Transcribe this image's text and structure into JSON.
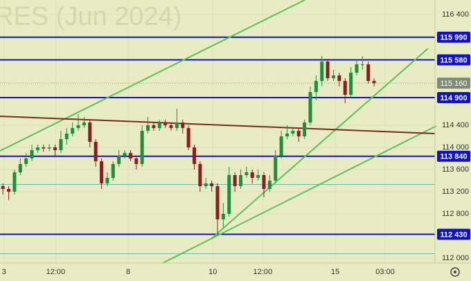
{
  "chart_data": {
    "type": "candlestick",
    "title": "RES (Jun 2024)",
    "ylim": [
      111912,
      116662
    ],
    "xlim": [
      0,
      75
    ],
    "yticks": [
      {
        "value": 116400,
        "label": "116 400"
      },
      {
        "value": 114400,
        "label": "114 400"
      },
      {
        "value": 114000,
        "label": "114 000"
      },
      {
        "value": 113600,
        "label": "113 600"
      },
      {
        "value": 113200,
        "label": "113 200"
      },
      {
        "value": 112800,
        "label": "112 800"
      },
      {
        "value": 112000,
        "label": "112 000"
      }
    ],
    "xticks": [
      {
        "value": 0.7,
        "label": "3"
      },
      {
        "value": 9.6,
        "label": "12:00"
      },
      {
        "value": 22.1,
        "label": "8"
      },
      {
        "value": 36.7,
        "label": "10"
      },
      {
        "value": 45.3,
        "label": "12:00"
      },
      {
        "value": 57.8,
        "label": "15"
      },
      {
        "value": 66.4,
        "label": "03:00"
      }
    ],
    "grid": true,
    "up_color": "#1f8f3c",
    "down_color": "#8b1e1e",
    "level_color": "#1010d0",
    "levels": [
      {
        "value": 115990,
        "label": "115 990"
      },
      {
        "value": 115580,
        "label": "115 580"
      },
      {
        "value": 114900,
        "label": "114 900"
      },
      {
        "value": 113840,
        "label": "113 840"
      },
      {
        "value": 112430,
        "label": "112 430"
      }
    ],
    "ref_lines": [
      113330,
      112080
    ],
    "last": {
      "value": 115160,
      "label": "115 160"
    },
    "open": [
      113300,
      113250,
      113200,
      113550,
      113700,
      113800,
      113950,
      114000,
      113980,
      114000,
      113950,
      114150,
      114250,
      114350,
      114400,
      114450,
      114100,
      113750,
      113350,
      113450,
      113700,
      113850,
      113900,
      113800,
      113700,
      114300,
      114400,
      114350,
      114450,
      114400,
      114350,
      114450,
      114350,
      114000,
      113700,
      113300,
      113350,
      113300,
      112700,
      112800,
      113500,
      113300,
      113500,
      113550,
      113450,
      113500,
      113250,
      113400,
      113850,
      114200,
      114250,
      114300,
      114200,
      114450,
      115000,
      115200,
      115550,
      115250,
      115300,
      115200,
      114950,
      115350,
      115500,
      115500,
      115200
    ],
    "high": [
      113350,
      113300,
      113600,
      113800,
      113900,
      114050,
      114050,
      114050,
      114060,
      114050,
      114300,
      114350,
      114450,
      114600,
      114550,
      114500,
      114150,
      113800,
      113550,
      113750,
      113950,
      113950,
      113950,
      113850,
      114400,
      114550,
      114450,
      114500,
      114500,
      114450,
      114700,
      114500,
      114400,
      114050,
      113750,
      113450,
      113400,
      113350,
      113000,
      113650,
      113550,
      113600,
      113650,
      113600,
      113600,
      113550,
      113500,
      113950,
      114300,
      114400,
      114350,
      114350,
      114500,
      115100,
      115300,
      115650,
      115600,
      115400,
      115350,
      115250,
      115450,
      115600,
      115650,
      115550,
      115250
    ],
    "low": [
      113150,
      113050,
      113150,
      113500,
      113650,
      113750,
      113900,
      113920,
      113930,
      113850,
      113900,
      114050,
      114200,
      114300,
      114350,
      114000,
      113650,
      113250,
      113300,
      113400,
      113650,
      113800,
      113750,
      113600,
      113650,
      114250,
      114300,
      114300,
      114350,
      114300,
      114300,
      114250,
      113950,
      113600,
      113200,
      113250,
      113200,
      112450,
      112550,
      112750,
      113200,
      113250,
      113450,
      113350,
      113400,
      113100,
      113200,
      113350,
      113800,
      114150,
      114200,
      114100,
      114150,
      114400,
      114850,
      115100,
      115200,
      115200,
      115100,
      114800,
      114900,
      115300,
      115400,
      115150,
      115100
    ],
    "close": [
      113250,
      113200,
      113550,
      113700,
      113800,
      113950,
      114000,
      113980,
      114000,
      113950,
      114150,
      114250,
      114350,
      114400,
      114450,
      114100,
      113750,
      113350,
      113450,
      113700,
      113850,
      113900,
      113800,
      113700,
      114300,
      114400,
      114350,
      114450,
      114400,
      114350,
      114450,
      114350,
      114000,
      113700,
      113300,
      113350,
      113300,
      112700,
      112800,
      113500,
      113300,
      113500,
      113550,
      113450,
      113500,
      113250,
      113400,
      113850,
      114200,
      114250,
      114300,
      114200,
      114450,
      115000,
      115200,
      115550,
      115250,
      115300,
      115200,
      114950,
      115350,
      115500,
      115500,
      115200,
      115160
    ]
  }
}
